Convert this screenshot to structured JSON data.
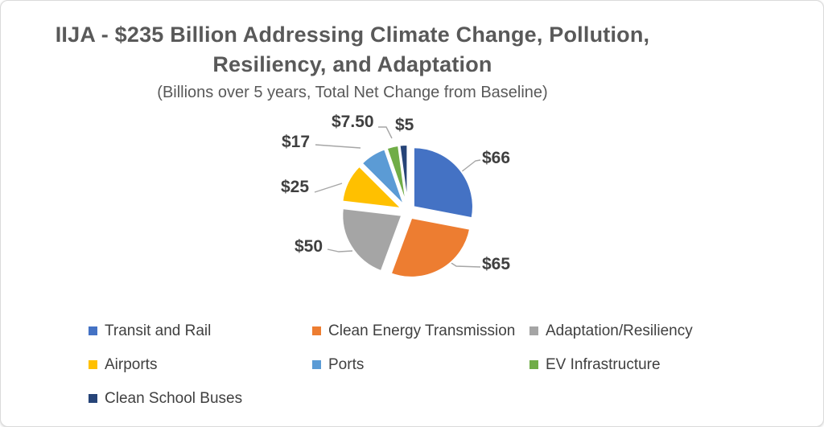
{
  "chart_data": {
    "type": "pie",
    "title": "IIJA - $235 Billion Addressing Climate Change, Pollution, Resiliency, and Adaptation",
    "title_lines": [
      "IIJA - $235 Billion Addressing Climate Change, Pollution,",
      "Resiliency, and Adaptation"
    ],
    "subtitle": "(Billions over 5 years, Total Net Change from Baseline)",
    "legend_position": "bottom",
    "start_angle_deg": 0,
    "clockwise": true,
    "exploded": true,
    "slices": [
      {
        "name": "Transit and Rail",
        "value": 66,
        "label": "$66",
        "color": "#4472C4"
      },
      {
        "name": "Clean Energy Transmission",
        "value": 65,
        "label": "$65",
        "color": "#ED7D31"
      },
      {
        "name": "Adaptation/Resiliency",
        "value": 50,
        "label": "$50",
        "color": "#A5A5A5"
      },
      {
        "name": "Airports",
        "value": 25,
        "label": "$25",
        "color": "#FFC000"
      },
      {
        "name": "Ports",
        "value": 17,
        "label": "$17",
        "color": "#5B9BD5"
      },
      {
        "name": "EV Infrastructure",
        "value": 7.5,
        "label": "$7.50",
        "color": "#70AD47"
      },
      {
        "name": "Clean School Buses",
        "value": 5,
        "label": "$5",
        "color": "#264478"
      }
    ],
    "leader_line_color": "#a6a6a6"
  }
}
